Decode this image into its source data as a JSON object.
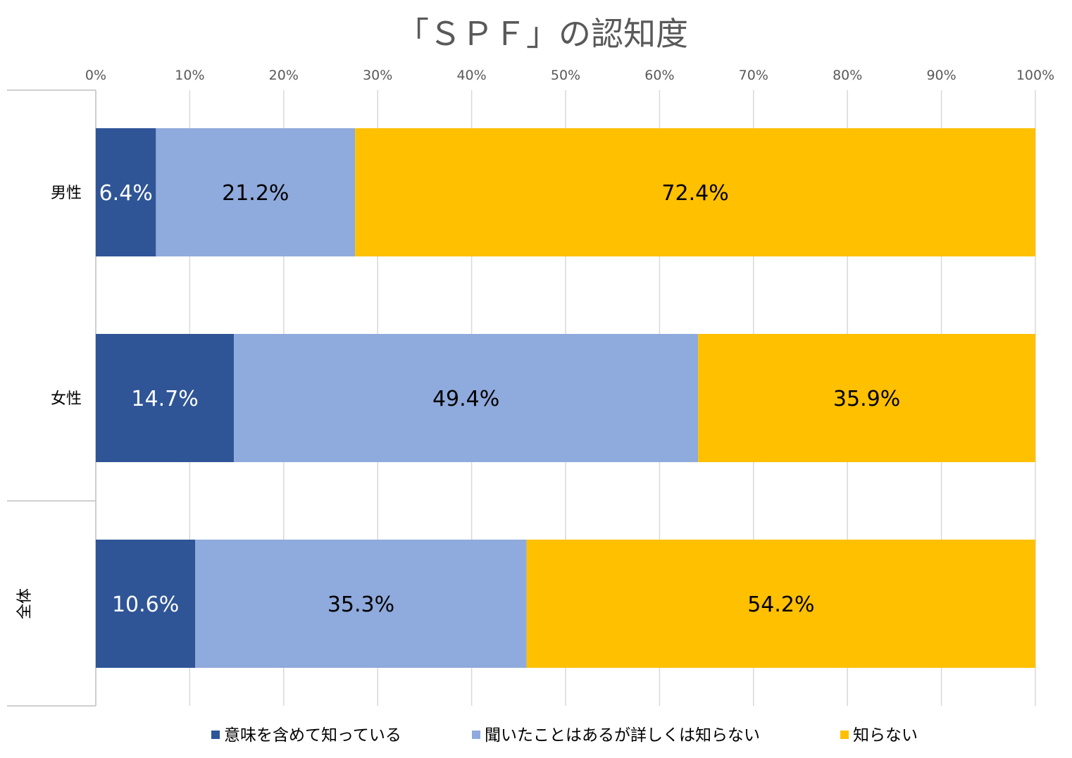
{
  "chart_data": {
    "type": "bar",
    "orientation": "horizontal",
    "stacked": "percent",
    "title": "「ＳＰＦ」の認知度",
    "categories": [
      "男性",
      "女性",
      "全体"
    ],
    "series": [
      {
        "name": "意味を含めて知っている",
        "values": [
          6.4,
          14.7,
          10.6
        ],
        "labels": [
          "6.4%",
          "14.7%",
          "10.6%"
        ],
        "color": "#2F5597",
        "label_color": "#FFFFFF"
      },
      {
        "name": "聞いたことはあるが詳しくは知らない",
        "values": [
          21.2,
          49.4,
          35.3
        ],
        "labels": [
          "21.2%",
          "49.4%",
          "35.3%"
        ],
        "color": "#8FAADC",
        "label_color": "#000000"
      },
      {
        "name": "知らない",
        "values": [
          72.4,
          35.9,
          54.2
        ],
        "labels": [
          "72.4%",
          "35.9%",
          "54.2%"
        ],
        "color": "#FFC000",
        "label_color": "#000000"
      }
    ],
    "x_ticks": [
      "0%",
      "10%",
      "20%",
      "30%",
      "40%",
      "50%",
      "60%",
      "70%",
      "80%",
      "90%",
      "100%"
    ],
    "xlim": [
      0,
      100
    ],
    "grid": true,
    "axis_position": "top",
    "legend_position": "bottom",
    "category_groups": [
      "全体"
    ]
  }
}
